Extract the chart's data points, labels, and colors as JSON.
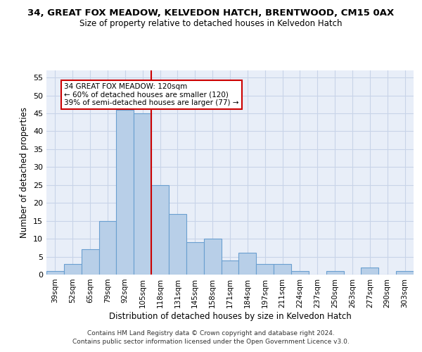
{
  "title1": "34, GREAT FOX MEADOW, KELVEDON HATCH, BRENTWOOD, CM15 0AX",
  "title2": "Size of property relative to detached houses in Kelvedon Hatch",
  "xlabel": "Distribution of detached houses by size in Kelvedon Hatch",
  "ylabel": "Number of detached properties",
  "categories": [
    "39sqm",
    "52sqm",
    "65sqm",
    "79sqm",
    "92sqm",
    "105sqm",
    "118sqm",
    "131sqm",
    "145sqm",
    "158sqm",
    "171sqm",
    "184sqm",
    "197sqm",
    "211sqm",
    "224sqm",
    "237sqm",
    "250sqm",
    "263sqm",
    "277sqm",
    "290sqm",
    "303sqm"
  ],
  "values": [
    1,
    3,
    7,
    15,
    46,
    45,
    25,
    17,
    9,
    10,
    4,
    6,
    3,
    3,
    1,
    0,
    1,
    0,
    2,
    0,
    1
  ],
  "bar_color": "#b8cfe8",
  "bar_edge_color": "#6a9fd0",
  "vline_index": 5.5,
  "vline_color": "#cc0000",
  "annotation_text": "34 GREAT FOX MEADOW: 120sqm\n← 60% of detached houses are smaller (120)\n39% of semi-detached houses are larger (77) →",
  "annotation_box_color": "#ffffff",
  "annotation_box_edge_color": "#cc0000",
  "ylim": [
    0,
    57
  ],
  "yticks": [
    0,
    5,
    10,
    15,
    20,
    25,
    30,
    35,
    40,
    45,
    50,
    55
  ],
  "grid_color": "#c8d4e8",
  "background_color": "#e8eef8",
  "footer1": "Contains HM Land Registry data © Crown copyright and database right 2024.",
  "footer2": "Contains public sector information licensed under the Open Government Licence v3.0."
}
